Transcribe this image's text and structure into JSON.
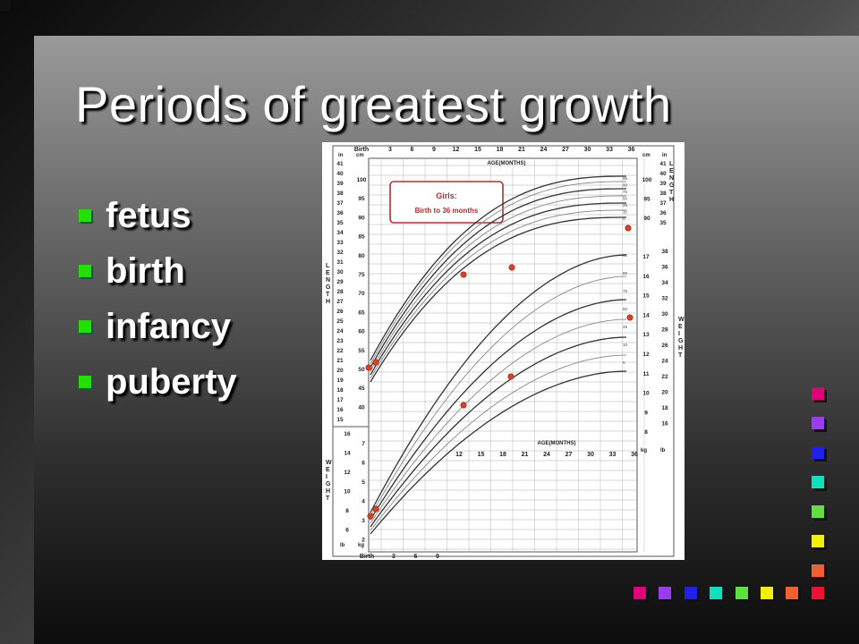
{
  "slide": {
    "title": "Periods of greatest growth",
    "bullets": [
      "fetus",
      "birth",
      "infancy",
      "puberty"
    ],
    "bullet_color": "#22e000"
  },
  "chart_image": {
    "top_axis_labels": [
      "Birth",
      "3",
      "6",
      "9",
      "12",
      "15",
      "18",
      "21",
      "24",
      "27",
      "30",
      "33",
      "36"
    ],
    "axis_title": "AGE(MONTHS)",
    "lower_axis_labels": [
      "12",
      "15",
      "18",
      "21",
      "24",
      "27",
      "30",
      "33",
      "36"
    ],
    "lower_axis_title": "AGE(MONTHS)",
    "bottom_axis_labels": [
      "Birth",
      "3",
      "6",
      "9"
    ],
    "callout_line1": "Girls:",
    "callout_line2": "Birth to 36 months",
    "left_unit_in": "in",
    "left_unit_cm": "cm",
    "right_unit_cm": "cm",
    "right_unit_in": "in",
    "left_in_ticks": [
      "41",
      "40",
      "39",
      "38",
      "37",
      "36",
      "35",
      "34",
      "33",
      "32",
      "31",
      "30",
      "29",
      "28",
      "27",
      "26",
      "25",
      "24",
      "23",
      "22",
      "21",
      "20",
      "19",
      "18",
      "17",
      "16",
      "15"
    ],
    "left_cm_ticks": [
      "100",
      "95",
      "90",
      "85",
      "80",
      "75",
      "70",
      "65",
      "60",
      "55",
      "50",
      "45",
      "40"
    ],
    "right_cm_ticks": [
      "100",
      "95",
      "90"
    ],
    "right_in_ticks": [
      "41",
      "40",
      "39",
      "38",
      "37",
      "36",
      "35"
    ],
    "weight_kg_ticks": [
      "17",
      "16",
      "15",
      "14",
      "13",
      "12",
      "11",
      "10",
      "9",
      "8"
    ],
    "weight_lb_ticks": [
      "38",
      "36",
      "34",
      "32",
      "30",
      "28",
      "26",
      "24",
      "22",
      "20",
      "18",
      "16"
    ],
    "right_weight_units": [
      "kg",
      "lb"
    ],
    "lower_left_lb_ticks": [
      "16",
      "14",
      "12",
      "10",
      "8",
      "6"
    ],
    "lower_left_kg_ticks": [
      "7",
      "6",
      "5",
      "4",
      "3",
      "2"
    ],
    "lower_left_units": [
      "lb",
      "kg"
    ],
    "percentiles": [
      "95",
      "90",
      "75",
      "50",
      "25",
      "10",
      "5"
    ],
    "vertical_label_length": "LENGTH",
    "vertical_label_weight": "WEIGHT"
  },
  "decor_squares": {
    "column_colors": [
      "#e0007a",
      "#9a3cf0",
      "#2020e8",
      "#10e0c0",
      "#60e040",
      "#f0f000",
      "#f06030"
    ],
    "row_colors": [
      "#e0007a",
      "#9a3cf0",
      "#2020e8",
      "#10e0c0",
      "#60e040",
      "#f0f000",
      "#f06030",
      "#f01030"
    ]
  }
}
